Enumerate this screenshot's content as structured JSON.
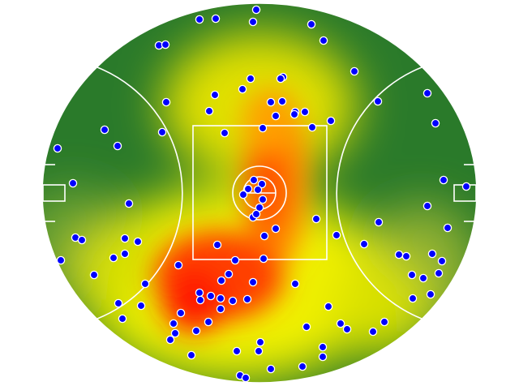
{
  "chart_data": {
    "type": "scatter",
    "color": "#0000ff",
    "xlim": [
      0,
      536
    ],
    "ylim": [
      0,
      467
    ],
    "x": [
      194,
      214,
      264,
      260,
      332,
      347,
      144,
      152,
      385,
      297,
      294,
      257,
      247,
      213,
      153,
      282,
      296,
      414,
      475,
      206,
      312,
      324,
      288,
      311,
      356,
      333,
      272,
      225,
      148,
      77,
      93,
      19,
      485,
      495,
      523,
      475,
      38,
      261,
      271,
      254,
      266,
      248,
      272,
      268,
      260,
      264,
      107,
      338,
      415,
      288,
      274,
      363,
      41,
      49,
      102,
      118,
      500,
      397,
      216,
      102,
      88,
      23,
      440,
      449,
      481,
      493,
      273,
      238,
      168,
      64,
      230,
      221,
      260,
      456,
      470,
      489,
      127,
      312,
      194,
      208,
      220,
      235,
      253,
      195,
      479,
      457,
      94,
      122,
      353,
      171,
      220,
      99,
      162,
      205,
      164,
      190,
      326,
      368,
      376,
      408,
      422,
      158,
      269,
      267,
      240,
      346,
      346,
      184,
      321,
      282,
      244,
      251
    ],
    "values": [
      448,
      449,
      460,
      445,
      442,
      422,
      416,
      417,
      384,
      377,
      375,
      375,
      362,
      355,
      346,
      346,
      347,
      347,
      357,
      335,
      334,
      334,
      329,
      331,
      323,
      315,
      314,
      308,
      309,
      312,
      292,
      289,
      320,
      250,
      242,
      218,
      246,
      250,
      245,
      239,
      238,
      232,
      226,
      216,
      204,
      208,
      221,
      202,
      198,
      190,
      181,
      182,
      179,
      176,
      178,
      174,
      191,
      171,
      170,
      159,
      154,
      151,
      158,
      156,
      159,
      150,
      153,
      151,
      145,
      133,
      134,
      126,
      124,
      133,
      129,
      135,
      122,
      122,
      111,
      107,
      104,
      101,
      103,
      102,
      109,
      104,
      98,
      95,
      94,
      86,
      91,
      79,
      73,
      75,
      61,
      64,
      69,
      73,
      66,
      63,
      75,
      53,
      50,
      39,
      39,
      44,
      32,
      34,
      20,
      17,
      9,
      6
    ]
  }
}
